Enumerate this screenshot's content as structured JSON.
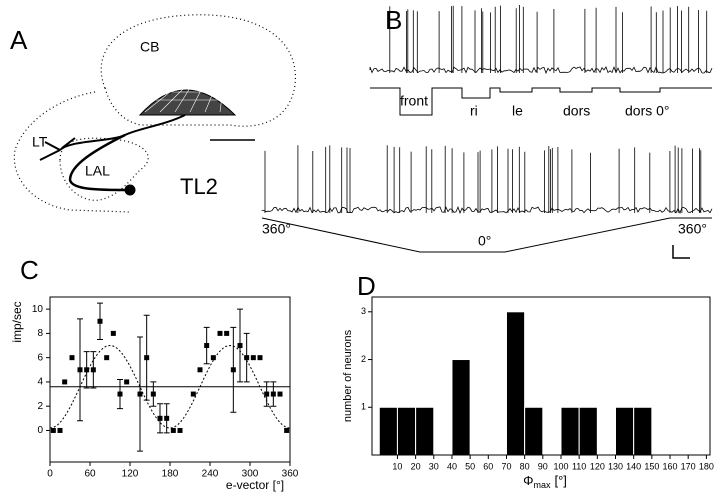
{
  "panels": {
    "A": {
      "label": "A",
      "regions": [
        "CB",
        "LT",
        "LAL"
      ],
      "neuron": "TL2"
    },
    "B": {
      "label": "B",
      "stimuli": [
        "front",
        "ri",
        "le",
        "dors",
        "dors 0°"
      ],
      "angles": [
        "360°",
        "0°",
        "360°"
      ]
    }
  },
  "chart_data": [
    {
      "type": "scatter",
      "panel_label": "C",
      "y_label": "imp/sec",
      "x_label": "e-vector [°]",
      "xlim": [
        0,
        360
      ],
      "xticks": [
        0,
        60,
        120,
        180,
        240,
        300,
        360
      ],
      "ylim": [
        -2.6,
        11
      ],
      "yticks": [
        0,
        2,
        4,
        6,
        8,
        10
      ],
      "color": "#000000",
      "x": [
        5,
        15,
        22,
        33,
        45,
        55,
        65,
        75,
        85,
        95,
        105,
        115,
        135,
        145,
        155,
        165,
        175,
        185,
        195,
        215,
        225,
        235,
        245,
        255,
        265,
        275,
        285,
        295,
        305,
        315,
        325,
        335,
        345,
        355
      ],
      "values": [
        0,
        0,
        4,
        6,
        5,
        5,
        5,
        9,
        6,
        8,
        3,
        4,
        3,
        6,
        3,
        1,
        1,
        0,
        0,
        3,
        5,
        7,
        6,
        8,
        8,
        5,
        7,
        6,
        6,
        6,
        3,
        3,
        3,
        0
      ],
      "errors": [
        null,
        null,
        null,
        null,
        4.2,
        1.5,
        1.5,
        1.5,
        null,
        null,
        1.2,
        null,
        4.7,
        3.5,
        1,
        1.2,
        1.2,
        null,
        null,
        null,
        null,
        1.5,
        null,
        null,
        null,
        3.5,
        3,
        2,
        null,
        null,
        1,
        1,
        null,
        null
      ],
      "fit": {
        "offset": 3.6,
        "amplitude": 3.4,
        "peak": 90,
        "period": 180
      }
    },
    {
      "type": "histogram",
      "panel_label": "D",
      "y_label": "number of neurons",
      "x_label": "Φ",
      "x_label_sub": "max",
      "x_label_unit": "[°]",
      "bins": [
        0,
        10,
        20,
        30,
        40,
        50,
        60,
        70,
        80,
        90,
        100,
        110,
        120,
        130,
        140,
        150,
        160,
        170,
        180
      ],
      "values": [
        1,
        1,
        1,
        0,
        2,
        0,
        0,
        3,
        1,
        0,
        1,
        1,
        0,
        1,
        1,
        0,
        0,
        0
      ],
      "xlim": [
        -4,
        182
      ],
      "xticks": [
        10,
        20,
        30,
        40,
        50,
        60,
        70,
        80,
        90,
        100,
        110,
        120,
        130,
        140,
        150,
        160,
        170,
        180
      ],
      "ylim": [
        0,
        3.31
      ],
      "yticks": [
        1,
        2,
        3
      ],
      "color": "#000000"
    }
  ]
}
